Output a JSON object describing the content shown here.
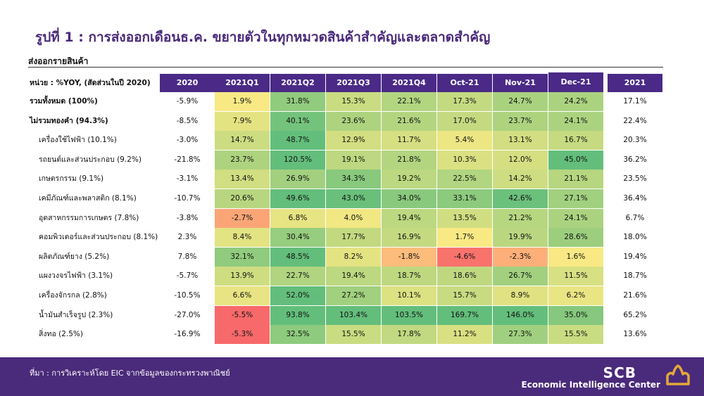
{
  "title": "รูปที่ 1 : การส่งออกเดือนธ.ค. ขยายตัวในทุกหมวดสินค้าสำคัญและตลาดสำคัญ",
  "subtitle": "ส่งออกรายสินค้า",
  "unit_label": "หน่วย : %YOY, (สัดส่วนในปี 2020)",
  "columns": [
    "2020",
    "2021Q1",
    "2021Q2",
    "2021Q3",
    "2021Q4",
    "Oct-21",
    "Nov-21",
    "Dec-21",
    "2021"
  ],
  "rows": [
    {
      "label": "รวมทั้งหมด (100%)",
      "bold": true,
      "values": [
        "-5.9%",
        "1.9%",
        "31.8%",
        "15.3%",
        "22.1%",
        "17.3%",
        "24.7%",
        "24.2%",
        "17.1%"
      ]
    },
    {
      "label": "ไม่รวมทองคำ (94.3%)",
      "bold": true,
      "values": [
        "-8.5%",
        "7.9%",
        "40.1%",
        "23.6%",
        "21.6%",
        "17.0%",
        "23.7%",
        "24.1%",
        "22.4%"
      ]
    },
    {
      "label": "เครื่องใช้ไฟฟ้า (10.1%)",
      "bold": false,
      "values": [
        "-3.0%",
        "14.7%",
        "48.7%",
        "12.9%",
        "11.7%",
        "5.4%",
        "13.1%",
        "16.7%",
        "20.3%"
      ]
    },
    {
      "label": "รถยนต์และส่วนประกอบ (9.2%)",
      "bold": false,
      "values": [
        "-21.8%",
        "23.7%",
        "120.5%",
        "19.1%",
        "21.8%",
        "10.3%",
        "12.0%",
        "45.0%",
        "36.2%"
      ]
    },
    {
      "label": "เกษตรกรรม (9.1%)",
      "bold": false,
      "values": [
        "-3.1%",
        "13.4%",
        "26.9%",
        "34.3%",
        "19.2%",
        "22.5%",
        "14.2%",
        "21.1%",
        "23.5%"
      ]
    },
    {
      "label": "เคมีภัณฑ์และพลาสติก (8.1%)",
      "bold": false,
      "values": [
        "-10.7%",
        "20.6%",
        "49.6%",
        "43.0%",
        "34.0%",
        "33.1%",
        "42.6%",
        "27.1%",
        "36.4%"
      ]
    },
    {
      "label": "อุตสาหกรรมการเกษตร (7.8%)",
      "bold": false,
      "values": [
        "-3.8%",
        "-2.7%",
        "6.8%",
        "4.0%",
        "19.4%",
        "13.5%",
        "21.2%",
        "24.1%",
        "6.7%"
      ]
    },
    {
      "label": "คอมพิวเตอร์และส่วนประกอบ (8.1%)",
      "bold": false,
      "values": [
        "2.3%",
        "8.4%",
        "30.4%",
        "17.7%",
        "16.9%",
        "1.7%",
        "19.9%",
        "28.6%",
        "18.0%"
      ]
    },
    {
      "label": "ผลิตภัณฑ์ยาง (5.2%)",
      "bold": false,
      "values": [
        "7.8%",
        "32.1%",
        "48.5%",
        "8.2%",
        "-1.8%",
        "-4.6%",
        "-2.3%",
        "1.6%",
        "19.4%"
      ]
    },
    {
      "label": "แผงวงจรไฟฟ้า (3.1%)",
      "bold": false,
      "values": [
        "-5.7%",
        "13.9%",
        "22.7%",
        "19.4%",
        "18.7%",
        "18.6%",
        "26.7%",
        "11.5%",
        "18.7%"
      ]
    },
    {
      "label": "เครื่องจักรกล (2.8%)",
      "bold": false,
      "values": [
        "-10.5%",
        "6.6%",
        "52.0%",
        "27.2%",
        "10.1%",
        "15.7%",
        "8.9%",
        "6.2%",
        "21.6%"
      ]
    },
    {
      "label": "น้ำมันสำเร็จรูป (2.3%)",
      "bold": false,
      "values": [
        "-27.0%",
        "-5.5%",
        "93.8%",
        "103.4%",
        "103.5%",
        "169.7%",
        "146.0%",
        "35.0%",
        "65.2%"
      ]
    },
    {
      "label": "สิ่งทอ (2.5%)",
      "bold": false,
      "values": [
        "-16.9%",
        "-5.3%",
        "32.5%",
        "15.5%",
        "17.8%",
        "11.2%",
        "27.3%",
        "15.5%",
        "13.6%"
      ]
    }
  ],
  "colors": {
    "header_bg": "#4a2a86",
    "footer_bg": "#4a2a7a",
    "heat_low": "#f8696b",
    "heat_mid": "#ffeb84",
    "heat_high": "#63be7b"
  },
  "footer": {
    "source": "ที่มา : การวิเคราะห์โดย EIC จากข้อมูลของกระทรวงพาณิชย์",
    "brand": "SCB",
    "brand_sub": "Economic Intelligence Center"
  },
  "logo_icon": "scb-logo-icon"
}
